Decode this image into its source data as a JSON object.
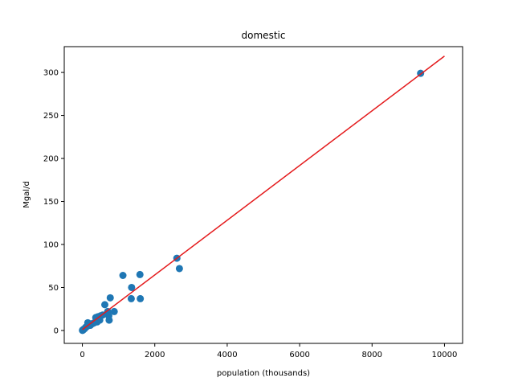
{
  "chart_data": {
    "type": "scatter",
    "title": "domestic",
    "xlabel": "population (thousands)",
    "ylabel": "Mgal/d",
    "xlim": [
      -500,
      10500
    ],
    "ylim": [
      -15,
      330
    ],
    "xticks": [
      0,
      2000,
      4000,
      6000,
      8000,
      10000
    ],
    "xtick_labels": [
      "0",
      "2000",
      "4000",
      "6000",
      "8000",
      "10000"
    ],
    "yticks": [
      0,
      50,
      100,
      150,
      200,
      250,
      300
    ],
    "ytick_labels": [
      "0",
      "50",
      "100",
      "150",
      "200",
      "250",
      "300"
    ],
    "grid": false,
    "points": [
      {
        "x": 9340,
        "y": 299
      },
      {
        "x": 2610,
        "y": 84
      },
      {
        "x": 2680,
        "y": 72
      },
      {
        "x": 1590,
        "y": 65
      },
      {
        "x": 1120,
        "y": 64
      },
      {
        "x": 1360,
        "y": 50
      },
      {
        "x": 1350,
        "y": 37
      },
      {
        "x": 1600,
        "y": 37
      },
      {
        "x": 770,
        "y": 38
      },
      {
        "x": 620,
        "y": 30
      },
      {
        "x": 880,
        "y": 22
      },
      {
        "x": 700,
        "y": 22
      },
      {
        "x": 730,
        "y": 17
      },
      {
        "x": 740,
        "y": 12
      },
      {
        "x": 560,
        "y": 18
      },
      {
        "x": 500,
        "y": 17
      },
      {
        "x": 430,
        "y": 16
      },
      {
        "x": 370,
        "y": 15
      },
      {
        "x": 480,
        "y": 12
      },
      {
        "x": 410,
        "y": 10
      },
      {
        "x": 330,
        "y": 9
      },
      {
        "x": 280,
        "y": 8
      },
      {
        "x": 150,
        "y": 9
      },
      {
        "x": 220,
        "y": 6
      },
      {
        "x": 140,
        "y": 5
      },
      {
        "x": 100,
        "y": 4
      },
      {
        "x": 80,
        "y": 3
      },
      {
        "x": 60,
        "y": 2
      },
      {
        "x": 40,
        "y": 1.5
      },
      {
        "x": 25,
        "y": 1
      },
      {
        "x": 15,
        "y": 0.5
      },
      {
        "x": 8,
        "y": 0.3
      },
      {
        "x": 3,
        "y": 0.1
      }
    ],
    "fit_line": {
      "x": [
        0,
        10000
      ],
      "y": [
        1,
        319
      ]
    },
    "colors": {
      "points": "#1f77b4",
      "fit_line": "#e41a1c"
    }
  }
}
